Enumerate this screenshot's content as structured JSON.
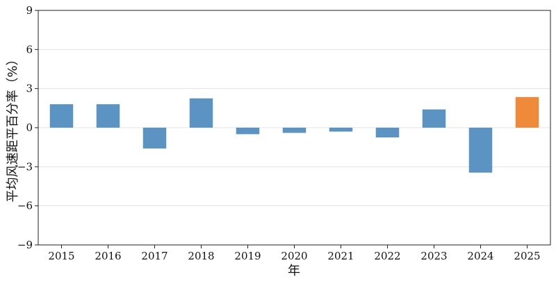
{
  "chart_data": {
    "type": "bar",
    "categories": [
      "2015",
      "2016",
      "2017",
      "2018",
      "2019",
      "2020",
      "2021",
      "2022",
      "2023",
      "2024",
      "2025"
    ],
    "values": [
      1.8,
      1.8,
      -1.6,
      2.25,
      -0.5,
      -0.4,
      -0.3,
      -0.75,
      1.4,
      -3.45,
      2.35
    ],
    "highlight_index": 10,
    "colors": {
      "default": "#5b93c2",
      "highlight": "#ee8a3a"
    },
    "xlabel": "年",
    "ylabel": "平均风速距平百分率（%）",
    "ylim": [
      -9,
      9
    ],
    "yticks": [
      9,
      6,
      3,
      0,
      -3,
      -6,
      -9
    ],
    "ytick_labels": [
      "9",
      "6",
      "3",
      "0",
      "−3",
      "−6",
      "−9"
    ],
    "grid": "horizontal",
    "legend": "none"
  }
}
